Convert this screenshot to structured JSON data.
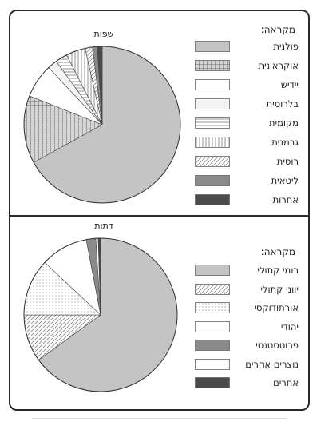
{
  "chart_data": [
    {
      "type": "pie",
      "title": "שפות",
      "legend_title": "מקראה:",
      "series": [
        {
          "name": "פולנית",
          "value": 67,
          "color": "#c4c4c4",
          "pattern": "solid"
        },
        {
          "name": "אוקראינית",
          "value": 14,
          "color": "#c4c4c4",
          "pattern": "crosshatch"
        },
        {
          "name": "יידיש",
          "value": 7,
          "color": "#ffffff",
          "pattern": "solid"
        },
        {
          "name": "בלרוסית",
          "value": 2,
          "color": "#f4f4f4",
          "pattern": "solid"
        },
        {
          "name": "מקומית",
          "value": 2.5,
          "color": "#ffffff",
          "pattern": "hlines"
        },
        {
          "name": "גרמנית",
          "value": 4,
          "color": "#ffffff",
          "pattern": "vlines"
        },
        {
          "name": "רוסית",
          "value": 1.5,
          "color": "#ffffff",
          "pattern": "diagonal"
        },
        {
          "name": "ליטאית",
          "value": 1,
          "color": "#8a8a8a",
          "pattern": "solid"
        },
        {
          "name": "אחרות",
          "value": 1,
          "color": "#4a4a4a",
          "pattern": "solid"
        }
      ]
    },
    {
      "type": "pie",
      "title": "דתות",
      "legend_title": "מקראה:",
      "series": [
        {
          "name": "רומי קתולי",
          "value": 65,
          "color": "#c4c4c4",
          "pattern": "solid"
        },
        {
          "name": "יווני קתולי",
          "value": 10,
          "color": "#ffffff",
          "pattern": "diagonal"
        },
        {
          "name": "אורתודוקסי",
          "value": 12,
          "color": "#ffffff",
          "pattern": "dots"
        },
        {
          "name": "יהודי",
          "value": 10,
          "color": "#ffffff",
          "pattern": "solid"
        },
        {
          "name": "פרוטסטנטי",
          "value": 2,
          "color": "#8a8a8a",
          "pattern": "solid"
        },
        {
          "name": "נוצרים אחרים",
          "value": 0.5,
          "color": "#ffffff",
          "pattern": "solid"
        },
        {
          "name": "אחרים",
          "value": 0.5,
          "color": "#4a4a4a",
          "pattern": "solid"
        }
      ]
    }
  ]
}
